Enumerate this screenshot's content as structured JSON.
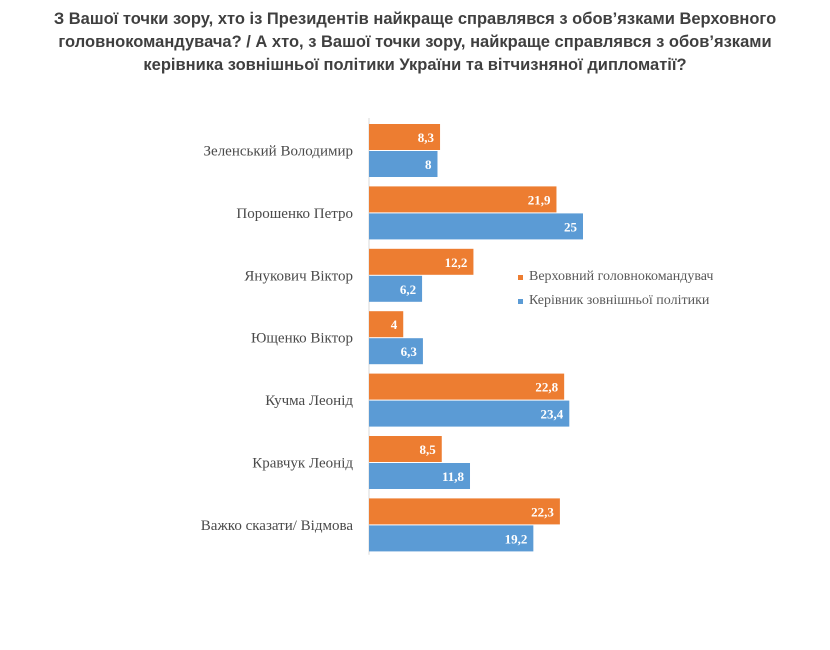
{
  "title_lines": [
    "З Вашої точки зору, хто із Президентів найкраще справлявся з обов’язками Верховного",
    "головнокомандувача? / А хто, з Вашої точки зору, найкраще справлявся з обов’язками",
    "керівника зовнішньої політики України та вітчизняної дипломатії?"
  ],
  "colors": {
    "series1": "#ED7D31",
    "series2": "#5B9BD5"
  },
  "chart_data": {
    "type": "bar",
    "orientation": "horizontal",
    "categories": [
      "Зеленський Володимир",
      "Порошенко Петро",
      "Янукович Віктор",
      "Ющенко Віктор",
      "Кучма Леонід",
      "Кравчук Леонід",
      "Важко сказати/ Відмова"
    ],
    "series": [
      {
        "name": "Верховний головнокомандувач",
        "values": [
          8.3,
          21.9,
          12.2,
          4,
          22.8,
          8.5,
          22.3
        ],
        "labels": [
          "8,3",
          "21,9",
          "12,2",
          "4",
          "22,8",
          "8,5",
          "22,3"
        ]
      },
      {
        "name": "Керівник зовнішньої політики",
        "values": [
          8,
          25,
          6.2,
          6.3,
          23.4,
          11.8,
          19.2
        ],
        "labels": [
          "8",
          "25",
          "6,2",
          "6,3",
          "23,4",
          "11,8",
          "19,2"
        ]
      }
    ],
    "legend_position": "right",
    "grid": false
  }
}
